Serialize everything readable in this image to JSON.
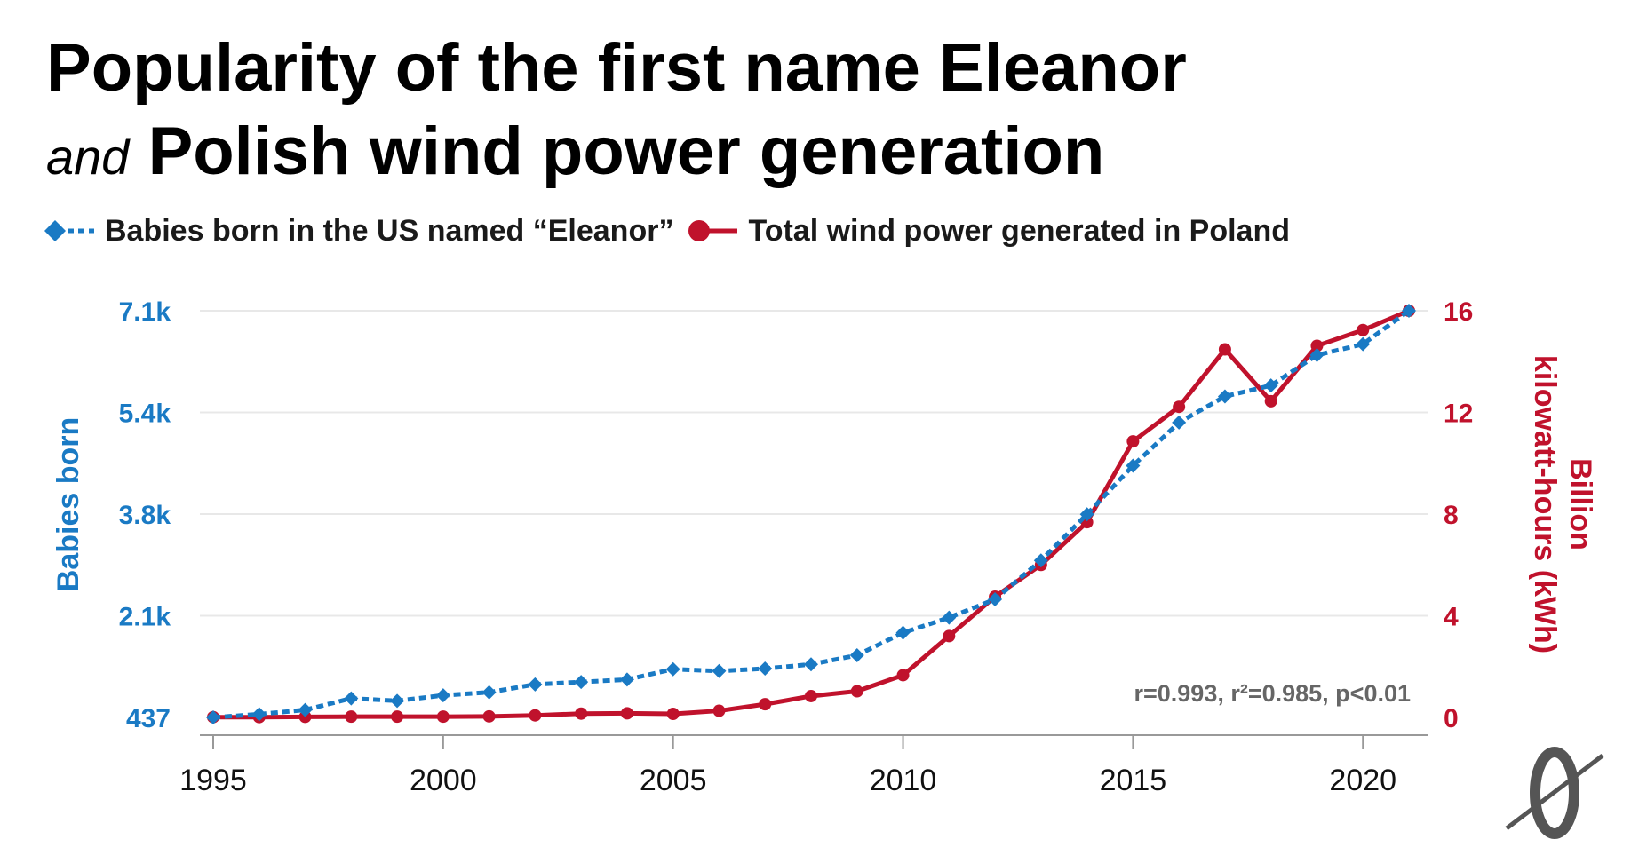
{
  "title": {
    "line1": "Popularity of the first name Eleanor",
    "connector": "and",
    "line2": "Polish wind power generation"
  },
  "legend": {
    "series1": "Babies born in the US named “Eleanor”",
    "series2": "Total wind power generated in Poland"
  },
  "stats_note": "r=0.993, r²=0.985, p<0.01",
  "colors": {
    "series1": "#1a7ac4",
    "series2": "#c0122c",
    "grid": "#e8e8e8",
    "axis": "#999999"
  },
  "chart_data": {
    "type": "line",
    "x": [
      1995,
      1996,
      1997,
      1998,
      1999,
      2000,
      2001,
      2002,
      2003,
      2004,
      2005,
      2006,
      2007,
      2008,
      2009,
      2010,
      2011,
      2012,
      2013,
      2014,
      2015,
      2016,
      2017,
      2018,
      2019,
      2020,
      2021
    ],
    "x_ticks": [
      1995,
      2000,
      2005,
      2010,
      2015,
      2020
    ],
    "xlim": [
      1995,
      2021
    ],
    "series": [
      {
        "name": "Babies born in the US named “Eleanor”",
        "axis": "left",
        "style": "dotted-diamond",
        "values": [
          437,
          490,
          560,
          750,
          710,
          800,
          850,
          980,
          1020,
          1060,
          1230,
          1200,
          1240,
          1310,
          1460,
          1830,
          2080,
          2380,
          3020,
          3780,
          4580,
          5290,
          5720,
          5900,
          6400,
          6580,
          7130
        ]
      },
      {
        "name": "Total wind power generated in Poland",
        "axis": "right",
        "style": "solid-circle",
        "values": [
          0.01,
          0.01,
          0.02,
          0.03,
          0.03,
          0.03,
          0.04,
          0.08,
          0.15,
          0.16,
          0.14,
          0.26,
          0.52,
          0.84,
          1.03,
          1.66,
          3.2,
          4.75,
          6.0,
          7.68,
          10.86,
          12.22,
          14.48,
          12.44,
          14.62,
          15.24,
          16.0
        ]
      }
    ],
    "y_left": {
      "label": "Babies born",
      "ticks": [
        "437",
        "2.1k",
        "3.8k",
        "5.4k",
        "7.1k"
      ],
      "tick_values": [
        437,
        2110,
        3780,
        5460,
        7130
      ],
      "ylim": [
        437,
        7130
      ]
    },
    "y_right": {
      "label_line1": "Billion",
      "label_line2": "kilowatt-hours (kWh)",
      "ticks": [
        "0",
        "4",
        "8",
        "12",
        "16"
      ],
      "tick_values": [
        0,
        4,
        8,
        12,
        16
      ],
      "ylim": [
        0,
        16
      ]
    },
    "grid": true,
    "legend_position": "top-left"
  }
}
